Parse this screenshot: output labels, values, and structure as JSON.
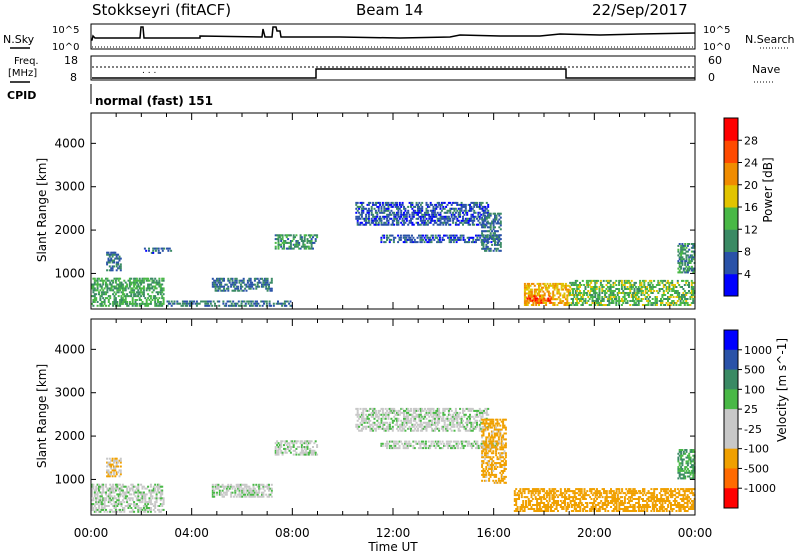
{
  "header": {
    "station": "Stokkseyri (fitACF)",
    "beam": "Beam 14",
    "date": "22/Sep/2017"
  },
  "left_labels": {
    "nsky": "N.Sky",
    "freq_line1": "Freq.",
    "freq_line2": "[MHz]",
    "cpid": "CPID"
  },
  "right_labels": {
    "nsearch": "N.Search",
    "nave": "Nave"
  },
  "noise_panel": {
    "ytick_top": "10^5",
    "ytick_bottom": "10^0"
  },
  "freq_panel": {
    "left_ticks": [
      "18",
      "8"
    ],
    "right_ticks": [
      "60",
      "0"
    ],
    "nave_step_times": [
      "09:00",
      "19:00"
    ]
  },
  "cpid_text": "normal (fast) 151",
  "colors": {
    "power_scale": [
      "#0000ff",
      "#2a52a8",
      "#3a8a64",
      "#49b846",
      "#e2c400",
      "#f08c00",
      "#ff4a00",
      "#ff0000"
    ],
    "velocity_scale": [
      "#0000ff",
      "#2a52a8",
      "#3a8a64",
      "#49b846",
      "#c8c8c8",
      "#c8c8c8",
      "#f0a000",
      "#ff6a00",
      "#ff0000"
    ]
  },
  "chart_data": [
    {
      "type": "heatmap",
      "quantity": "power",
      "ylabel": "Slant Range [km]",
      "xlabel": "",
      "x_ticks": [
        "00:00",
        "04:00",
        "08:00",
        "12:00",
        "16:00",
        "20:00",
        "00:00"
      ],
      "y_ticks": [
        1000,
        2000,
        3000,
        4000
      ],
      "ylim": [
        180,
        4700
      ],
      "xlim_hours": [
        0,
        24
      ],
      "colorbar": {
        "label": "Power [dB]",
        "ticks": [
          4,
          8,
          12,
          16,
          20,
          24,
          28
        ],
        "range": [
          0,
          32
        ]
      },
      "echo_regions": [
        {
          "t0": 0.0,
          "t1": 2.9,
          "r0": 230,
          "r1": 900,
          "level": 12
        },
        {
          "t0": 0.6,
          "t1": 1.2,
          "r0": 1050,
          "r1": 1500,
          "level": 8
        },
        {
          "t0": 2.1,
          "t1": 3.2,
          "r0": 1450,
          "r1": 1600,
          "level": 6
        },
        {
          "t0": 4.8,
          "t1": 7.2,
          "r0": 580,
          "r1": 900,
          "level": 8
        },
        {
          "t0": 3.0,
          "t1": 8.0,
          "r0": 230,
          "r1": 380,
          "level": 8
        },
        {
          "t0": 7.3,
          "t1": 9.0,
          "r0": 1550,
          "r1": 1900,
          "level": 10
        },
        {
          "t0": 11.5,
          "t1": 16.2,
          "r0": 1700,
          "r1": 1900,
          "level": 6
        },
        {
          "t0": 10.5,
          "t1": 15.8,
          "r0": 2100,
          "r1": 2650,
          "level": 6
        },
        {
          "t0": 15.5,
          "t1": 16.3,
          "r0": 1500,
          "r1": 2400,
          "level": 8
        },
        {
          "t0": 17.2,
          "t1": 19.0,
          "r0": 250,
          "r1": 780,
          "level": 20
        },
        {
          "t0": 17.3,
          "t1": 18.3,
          "r0": 300,
          "r1": 500,
          "level": 26
        },
        {
          "t0": 19.0,
          "t1": 24.0,
          "r0": 250,
          "r1": 850,
          "level": 14
        },
        {
          "t0": 23.3,
          "t1": 24.0,
          "r0": 1000,
          "r1": 1700,
          "level": 10
        }
      ]
    },
    {
      "type": "heatmap",
      "quantity": "velocity",
      "ylabel": "Slant Range [km]",
      "xlabel": "Time UT",
      "x_ticks": [
        "00:00",
        "04:00",
        "08:00",
        "12:00",
        "16:00",
        "20:00",
        "00:00"
      ],
      "y_ticks": [
        1000,
        2000,
        3000,
        4000
      ],
      "ylim": [
        180,
        4700
      ],
      "xlim_hours": [
        0,
        24
      ],
      "colorbar": {
        "label": "Velocity [m s^-1]",
        "ticks": [
          1000,
          500,
          100,
          25,
          -25,
          -100,
          -500,
          -1000
        ]
      },
      "echo_regions": [
        {
          "t0": 0.0,
          "t1": 2.9,
          "r0": 230,
          "r1": 900,
          "level": 0
        },
        {
          "t0": 0.6,
          "t1": 1.2,
          "r0": 1050,
          "r1": 1500,
          "level": -100
        },
        {
          "t0": 4.8,
          "t1": 7.2,
          "r0": 580,
          "r1": 900,
          "level": 0
        },
        {
          "t0": 7.3,
          "t1": 9.0,
          "r0": 1550,
          "r1": 1900,
          "level": 0
        },
        {
          "t0": 11.5,
          "t1": 16.2,
          "r0": 1700,
          "r1": 1900,
          "level": 0
        },
        {
          "t0": 10.5,
          "t1": 15.8,
          "r0": 2100,
          "r1": 2650,
          "level": 0
        },
        {
          "t0": 15.5,
          "t1": 16.5,
          "r0": 900,
          "r1": 2400,
          "level": -150
        },
        {
          "t0": 16.8,
          "t1": 24.0,
          "r0": 250,
          "r1": 800,
          "level": -300
        },
        {
          "t0": 23.3,
          "t1": 24.0,
          "r0": 1000,
          "r1": 1700,
          "level": 100
        }
      ]
    }
  ]
}
